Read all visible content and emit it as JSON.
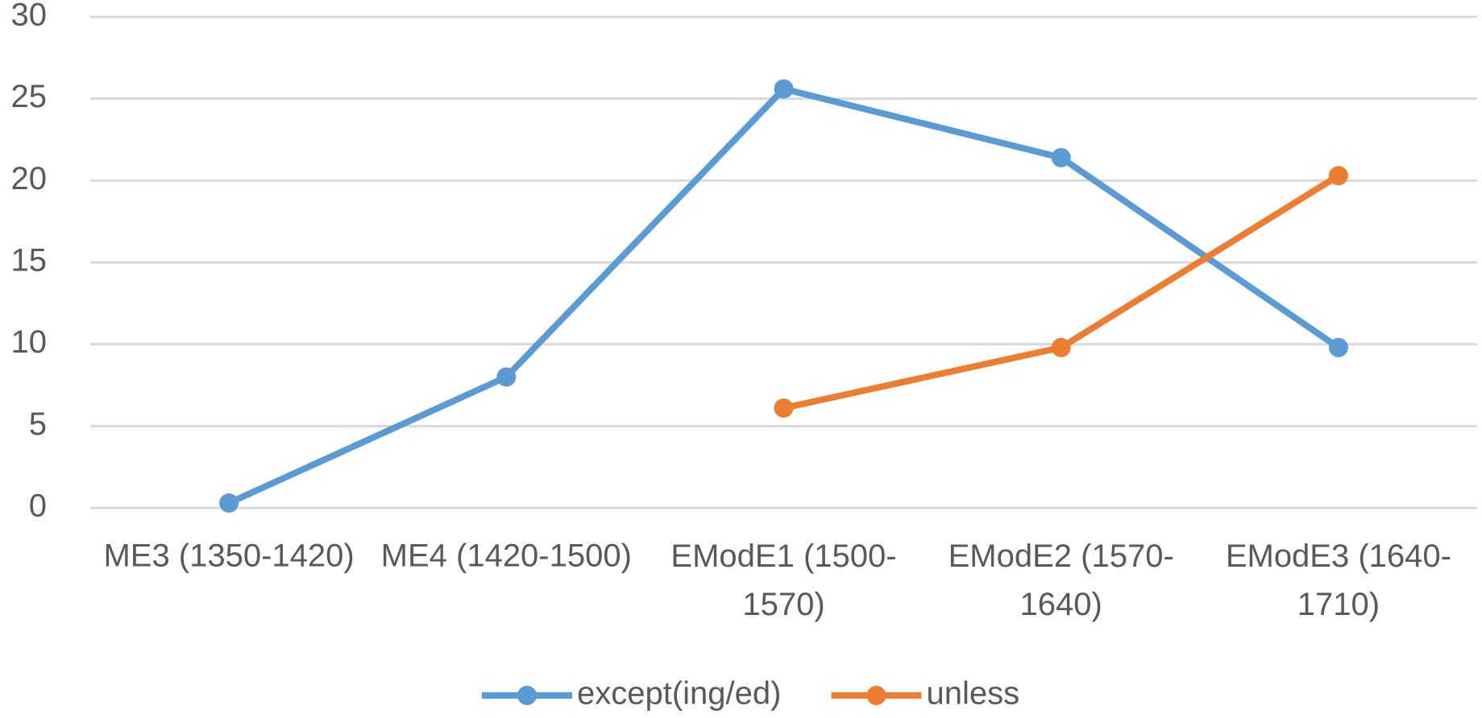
{
  "chart_data": {
    "type": "line",
    "categories": [
      "ME3 (1350-1420)",
      "ME4 (1420-1500)",
      "EModE1 (1500-1570)",
      "EModE2 (1570-1640)",
      "EModE3 (1640-1710)"
    ],
    "series": [
      {
        "name": "except(ing/ed)",
        "color": "#5b9bd5",
        "values": [
          0.3,
          8,
          25.6,
          21.4,
          9.8
        ]
      },
      {
        "name": "unless",
        "color": "#ed7d31",
        "values": [
          null,
          null,
          6.1,
          9.8,
          20.3
        ]
      }
    ],
    "ylim": [
      0,
      30
    ],
    "yticks": [
      0,
      5,
      10,
      15,
      20,
      25,
      30
    ],
    "grid": true,
    "legend": "bottom"
  }
}
